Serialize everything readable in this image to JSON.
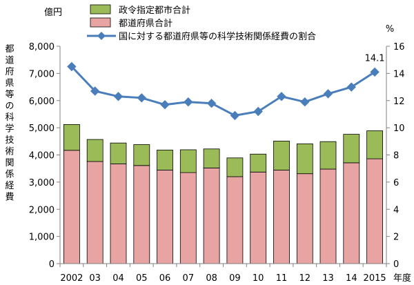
{
  "chart_data": {
    "type": "bar",
    "stacked": true,
    "categories": [
      "2002",
      "03",
      "04",
      "05",
      "06",
      "07",
      "08",
      "09",
      "10",
      "11",
      "12",
      "13",
      "14",
      "2015"
    ],
    "x_unit": "年度",
    "y_left": {
      "unit": "億円",
      "label": "都道府県等の科学技術関係経費",
      "ylim": [
        0,
        8000
      ],
      "ticks": [
        "0",
        "1,000",
        "2,000",
        "3,000",
        "4,000",
        "5,000",
        "6,000",
        "7,000",
        "8,000"
      ]
    },
    "y_right": {
      "unit": "%",
      "ylim": [
        0,
        16
      ],
      "ticks": [
        "0",
        "2",
        "4",
        "6",
        "8",
        "10",
        "12",
        "14",
        "16"
      ]
    },
    "series": [
      {
        "name": "都道府県合計",
        "type": "bar",
        "axis": "left",
        "color": "#e8a3a3",
        "values": [
          4170,
          3760,
          3670,
          3610,
          3440,
          3350,
          3520,
          3200,
          3370,
          3440,
          3310,
          3480,
          3710,
          3860
        ]
      },
      {
        "name": "政令指定都市合計",
        "type": "bar",
        "axis": "left",
        "color": "#9bbb59",
        "values": [
          950,
          810,
          770,
          770,
          740,
          840,
          700,
          690,
          660,
          1070,
          1100,
          1010,
          1050,
          1030
        ]
      },
      {
        "name": "国に対する都道府県等の科学技術関係経費の割合",
        "type": "line",
        "axis": "right",
        "color": "#4a7ebb",
        "values": [
          14.5,
          12.7,
          12.3,
          12.2,
          11.7,
          11.9,
          11.8,
          10.9,
          11.2,
          12.3,
          11.9,
          12.5,
          13.0,
          14.1
        ]
      }
    ],
    "annotations": [
      {
        "category": "2015",
        "series": 2,
        "text": "14.1"
      }
    ],
    "grid": false,
    "legend": "top"
  }
}
